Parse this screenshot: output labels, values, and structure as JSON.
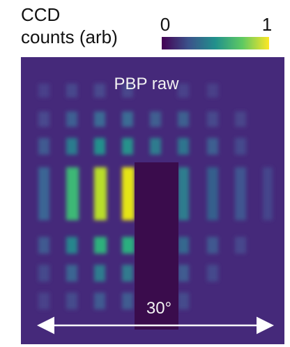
{
  "colorbar": {
    "label_line1": "CCD",
    "label_line2": "counts (arb)",
    "min_label": "0",
    "max_label": "1"
  },
  "image": {
    "title": "PBP raw",
    "scale_label": "30°"
  }
}
